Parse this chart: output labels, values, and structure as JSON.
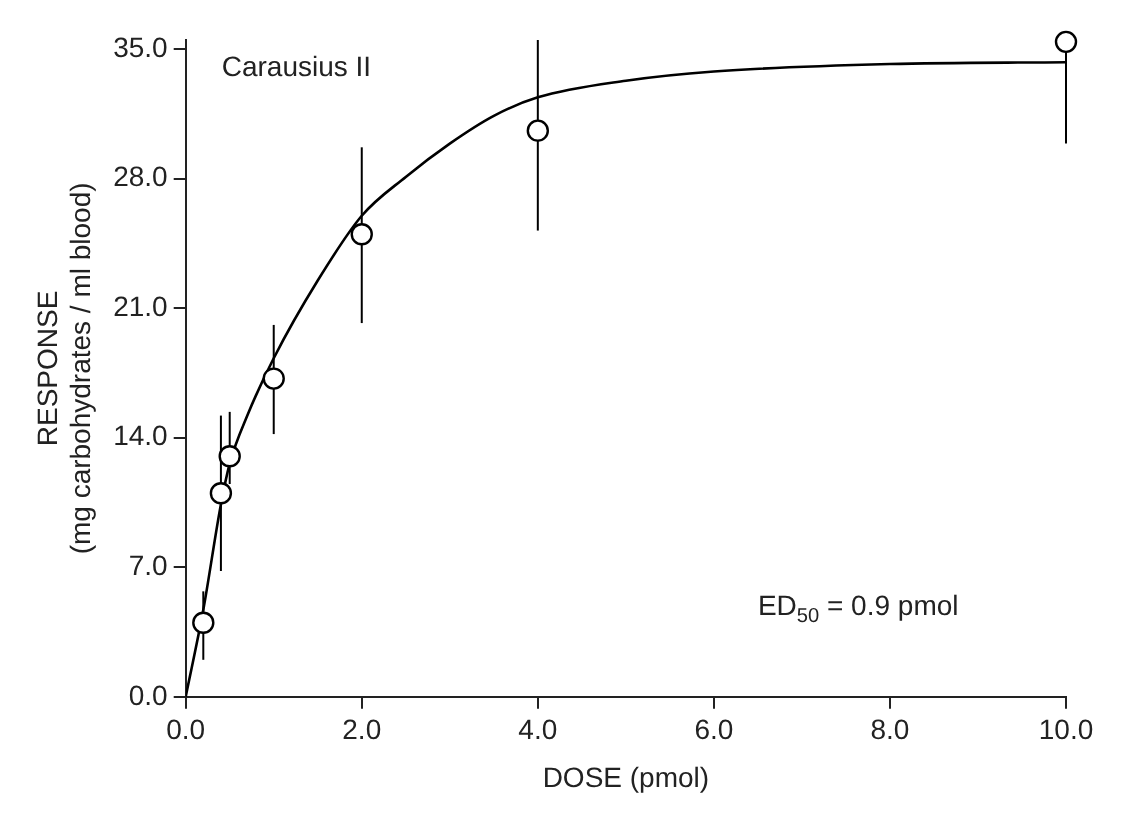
{
  "chart_data": {
    "type": "scatter",
    "xlabel": "DOSE (pmol)",
    "ylabel": "RESPONSE\n(mg carbohydrates / ml blood)",
    "annotations": [
      "Carausius II",
      "ED$_{50}$ = 0.9 pmol"
    ],
    "series": [
      {
        "type": "scatter",
        "marker": "circle",
        "color": "#000000",
        "x": [
          0.2,
          0.4,
          0.5,
          1.0,
          2.0,
          4.0,
          10.0
        ],
        "values": [
          4.0,
          11.0,
          13.0,
          17.2,
          25.0,
          30.6,
          35.4
        ],
        "errors": [
          [
            2.0,
            5.7
          ],
          [
            6.8,
            15.2
          ],
          [
            11.5,
            15.4
          ],
          [
            14.2,
            20.1
          ],
          [
            20.2,
            29.7
          ],
          [
            25.2,
            35.5
          ],
          [
            29.9,
            35.4
          ]
        ]
      },
      {
        "type": "line",
        "marker": "none",
        "color": "#000000",
        "x": [
          0,
          0.2,
          0.4,
          0.5,
          0.7,
          1.0,
          1.5,
          2.0,
          2.5,
          3.0,
          3.5,
          4.0,
          5.0,
          6.0,
          8.0,
          10.0
        ],
        "values": [
          0,
          4.7,
          10.4,
          12.6,
          15.2,
          18.3,
          22.5,
          26.0,
          28.1,
          29.9,
          31.4,
          32.4,
          33.3,
          33.8,
          34.2,
          34.3
        ]
      }
    ],
    "xlim": [
      0,
      10
    ],
    "xticks": [
      {
        "value": 0,
        "label": "0.0"
      },
      {
        "value": 2,
        "label": "2.0"
      },
      {
        "value": 4,
        "label": "4.0"
      },
      {
        "value": 6,
        "label": "6.0"
      },
      {
        "value": 8,
        "label": "8.0"
      },
      {
        "value": 10,
        "label": "10.0"
      }
    ],
    "ylim": [
      0,
      35.5
    ],
    "yticks": [
      {
        "value": 0,
        "label": "0.0"
      },
      {
        "value": 7,
        "label": "7.0"
      },
      {
        "value": 14,
        "label": "14.0"
      },
      {
        "value": 21,
        "label": "21.0"
      },
      {
        "value": 28,
        "label": "28.0"
      },
      {
        "value": 35,
        "label": "35.0"
      }
    ],
    "grid": false,
    "legend": false,
    "line_style": "solid"
  }
}
